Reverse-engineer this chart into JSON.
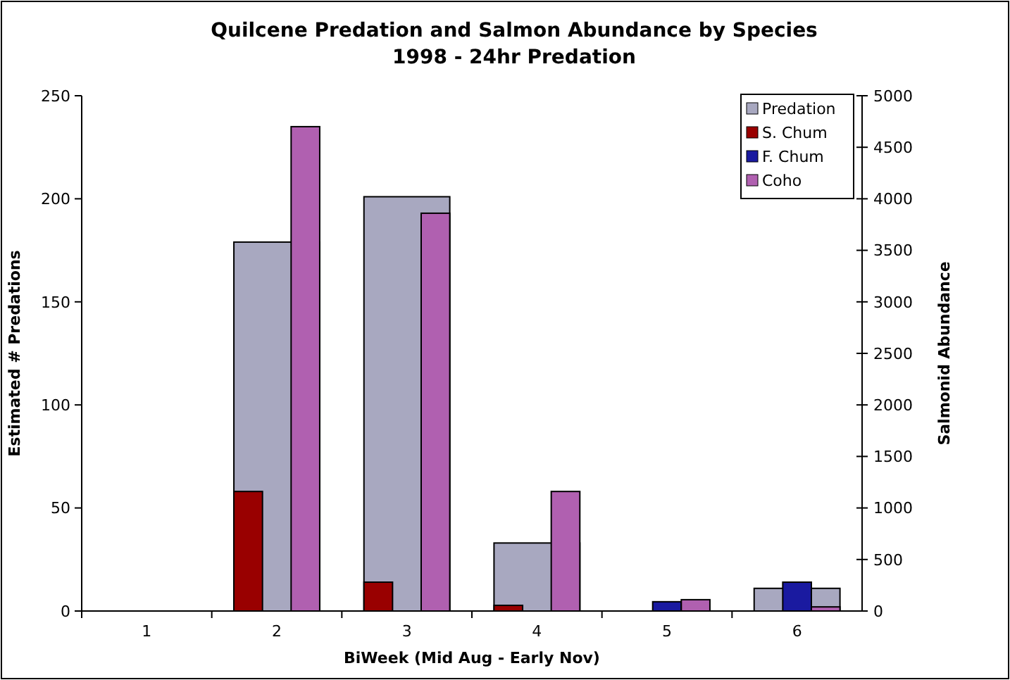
{
  "chart_data": {
    "type": "bar",
    "title": "Quilcene Predation and Salmon Abundance by Species\n1998 - 24hr Predation",
    "xlabel": "BiWeek (Mid Aug - Early Nov)",
    "ylabel": "Estimated # Predations",
    "y2label": "Salmonid Abundance",
    "categories": [
      "1",
      "2",
      "3",
      "4",
      "5",
      "6"
    ],
    "series": [
      {
        "name": "Predation",
        "color": "#a8a8c0",
        "values": [
          0,
          179,
          201,
          33,
          0,
          11
        ]
      },
      {
        "name": "S. Chum",
        "color": "#990000",
        "axis": "y2",
        "values": [
          0,
          1160,
          280,
          55,
          0,
          0
        ]
      },
      {
        "name": "F. Chum",
        "color": "#1a1aa0",
        "axis": "y2",
        "values": [
          0,
          0,
          0,
          0,
          90,
          280
        ]
      },
      {
        "name": "Coho",
        "color": "#b060b0",
        "axis": "y2",
        "values": [
          0,
          4700,
          3860,
          1160,
          110,
          40
        ]
      }
    ],
    "ylim": [
      0,
      250
    ],
    "yticks": [
      0,
      50,
      100,
      150,
      200,
      250
    ],
    "y2lim": [
      0,
      5000
    ],
    "y2ticks": [
      0,
      500,
      1000,
      1500,
      2000,
      2500,
      3000,
      3500,
      4000,
      4500,
      5000
    ],
    "legend": "top right",
    "grid": false
  }
}
